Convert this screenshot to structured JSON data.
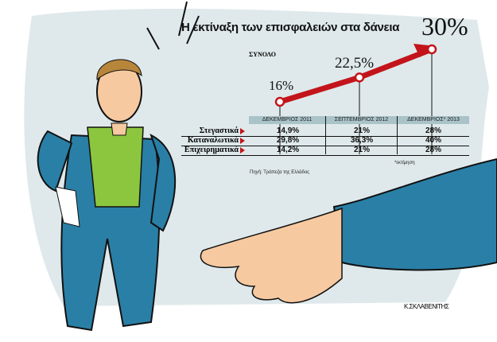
{
  "chart_data": {
    "type": "line",
    "title": "Η εκτίναξη των επισφαλειών στα δάνεια",
    "subtitle": "ΣΥΝΟΛΟ",
    "categories": [
      "ΔΕΚΕΜΒΡΙΟΣ 2011",
      "ΣΕΠΤΕΜΒΡΙΟΣ 2012",
      "ΔΕΚΕΜΒΡΙΟΣ* 2013"
    ],
    "series": [
      {
        "name": "ΣΥΝΟΛΟ",
        "values": [
          16,
          22.5,
          30
        ],
        "labels": [
          "16%",
          "22,5%",
          "30%"
        ],
        "color": "#c3141b"
      }
    ],
    "table": {
      "rows": [
        {
          "label": "Στεγαστικά",
          "values": [
            "14,9%",
            "21%",
            "28%"
          ]
        },
        {
          "label": "Καταναλωτικά",
          "values": [
            "29,8%",
            "36,3%",
            "40%"
          ]
        },
        {
          "label": "Επιχειρηματικά",
          "values": [
            "14,2%",
            "21%",
            "28%"
          ]
        }
      ]
    },
    "footnote": "*εκτίμηση",
    "source": "Πηγή: Τράπεζα της Ελλάδος",
    "grid": false
  },
  "signature": "Κ.ΣΚΛΑΒΕΝΙΤΗΣ",
  "colors": {
    "accent": "#c3141b",
    "background_blob": "#dfe9eb",
    "table_header": "#a9c3c8"
  }
}
